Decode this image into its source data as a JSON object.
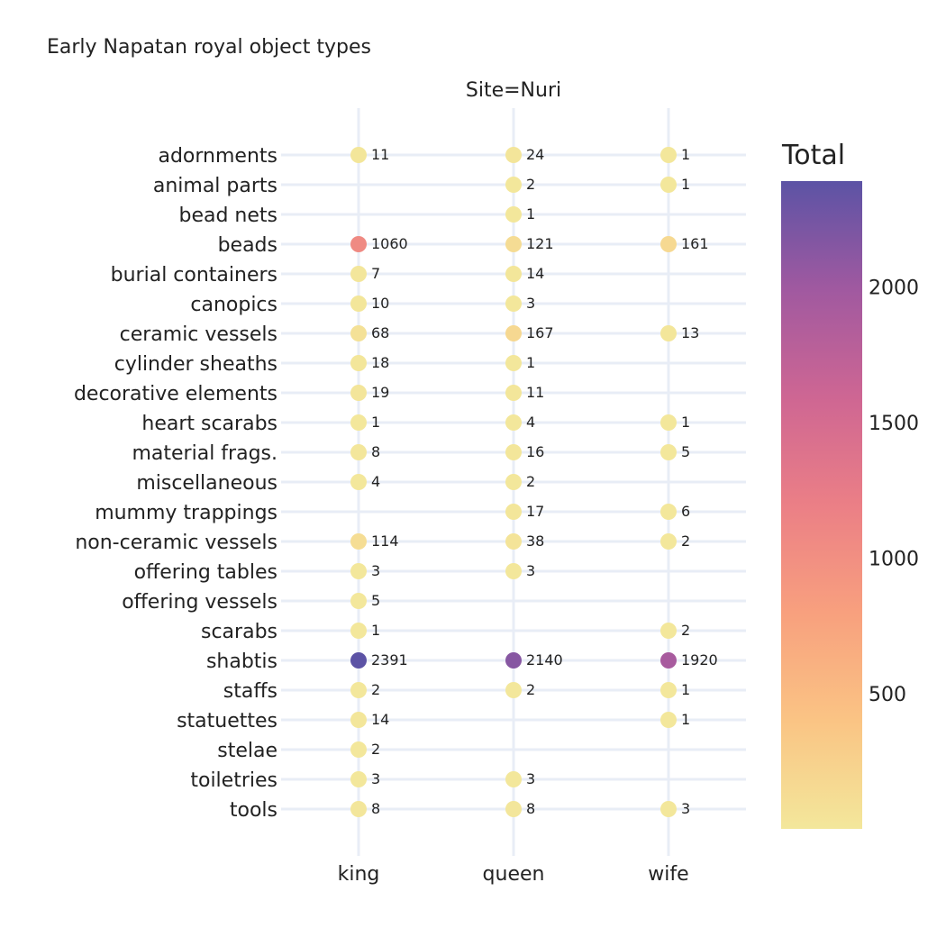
{
  "chart_data": {
    "type": "scatter",
    "title": "Early Napatan royal object types",
    "facet_label": "Site=Nuri",
    "x_categories": [
      "king",
      "queen",
      "wife"
    ],
    "y_categories": [
      "adornments",
      "animal parts",
      "bead nets",
      "beads",
      "burial containers",
      "canopics",
      "ceramic vessels",
      "cylinder sheaths",
      "decorative elements",
      "heart scarabs",
      "material frags.",
      "miscellaneous",
      "mummy trappings",
      "non-ceramic vessels",
      "offering tables",
      "offering vessels",
      "scarabs",
      "shabtis",
      "staffs",
      "statuettes",
      "stelae",
      "toiletries",
      "tools"
    ],
    "points": [
      {
        "x": "king",
        "y": "adornments",
        "value": 11
      },
      {
        "x": "queen",
        "y": "adornments",
        "value": 24
      },
      {
        "x": "wife",
        "y": "adornments",
        "value": 1
      },
      {
        "x": "queen",
        "y": "animal parts",
        "value": 2
      },
      {
        "x": "wife",
        "y": "animal parts",
        "value": 1
      },
      {
        "x": "queen",
        "y": "bead nets",
        "value": 1
      },
      {
        "x": "king",
        "y": "beads",
        "value": 1060
      },
      {
        "x": "queen",
        "y": "beads",
        "value": 121
      },
      {
        "x": "wife",
        "y": "beads",
        "value": 161
      },
      {
        "x": "king",
        "y": "burial containers",
        "value": 7
      },
      {
        "x": "queen",
        "y": "burial containers",
        "value": 14
      },
      {
        "x": "king",
        "y": "canopics",
        "value": 10
      },
      {
        "x": "queen",
        "y": "canopics",
        "value": 3
      },
      {
        "x": "king",
        "y": "ceramic vessels",
        "value": 68
      },
      {
        "x": "queen",
        "y": "ceramic vessels",
        "value": 167
      },
      {
        "x": "wife",
        "y": "ceramic vessels",
        "value": 13
      },
      {
        "x": "king",
        "y": "cylinder sheaths",
        "value": 18
      },
      {
        "x": "queen",
        "y": "cylinder sheaths",
        "value": 1
      },
      {
        "x": "king",
        "y": "decorative elements",
        "value": 19
      },
      {
        "x": "queen",
        "y": "decorative elements",
        "value": 11
      },
      {
        "x": "king",
        "y": "heart scarabs",
        "value": 1
      },
      {
        "x": "queen",
        "y": "heart scarabs",
        "value": 4
      },
      {
        "x": "wife",
        "y": "heart scarabs",
        "value": 1
      },
      {
        "x": "king",
        "y": "material frags.",
        "value": 8
      },
      {
        "x": "queen",
        "y": "material frags.",
        "value": 16
      },
      {
        "x": "wife",
        "y": "material frags.",
        "value": 5
      },
      {
        "x": "king",
        "y": "miscellaneous",
        "value": 4
      },
      {
        "x": "queen",
        "y": "miscellaneous",
        "value": 2
      },
      {
        "x": "queen",
        "y": "mummy trappings",
        "value": 17
      },
      {
        "x": "wife",
        "y": "mummy trappings",
        "value": 6
      },
      {
        "x": "king",
        "y": "non-ceramic vessels",
        "value": 114
      },
      {
        "x": "queen",
        "y": "non-ceramic vessels",
        "value": 38
      },
      {
        "x": "wife",
        "y": "non-ceramic vessels",
        "value": 2
      },
      {
        "x": "king",
        "y": "offering tables",
        "value": 3
      },
      {
        "x": "queen",
        "y": "offering tables",
        "value": 3
      },
      {
        "x": "king",
        "y": "offering vessels",
        "value": 5
      },
      {
        "x": "king",
        "y": "scarabs",
        "value": 1
      },
      {
        "x": "wife",
        "y": "scarabs",
        "value": 2
      },
      {
        "x": "king",
        "y": "shabtis",
        "value": 2391
      },
      {
        "x": "queen",
        "y": "shabtis",
        "value": 2140
      },
      {
        "x": "wife",
        "y": "shabtis",
        "value": 1920
      },
      {
        "x": "king",
        "y": "staffs",
        "value": 2
      },
      {
        "x": "queen",
        "y": "staffs",
        "value": 2
      },
      {
        "x": "wife",
        "y": "staffs",
        "value": 1
      },
      {
        "x": "king",
        "y": "statuettes",
        "value": 14
      },
      {
        "x": "wife",
        "y": "statuettes",
        "value": 1
      },
      {
        "x": "king",
        "y": "stelae",
        "value": 2
      },
      {
        "x": "king",
        "y": "toiletries",
        "value": 3
      },
      {
        "x": "queen",
        "y": "toiletries",
        "value": 3
      },
      {
        "x": "king",
        "y": "tools",
        "value": 8
      },
      {
        "x": "queen",
        "y": "tools",
        "value": 8
      },
      {
        "x": "wife",
        "y": "tools",
        "value": 3
      }
    ],
    "colorbar": {
      "title": "Total",
      "range": [
        1,
        2391
      ],
      "ticks": [
        500,
        1000,
        1500,
        2000
      ],
      "colors": [
        "#f3e79b",
        "#fac484",
        "#f8a07e",
        "#eb7f86",
        "#ce6693",
        "#a059a0",
        "#5c53a5"
      ]
    },
    "grid": true
  }
}
